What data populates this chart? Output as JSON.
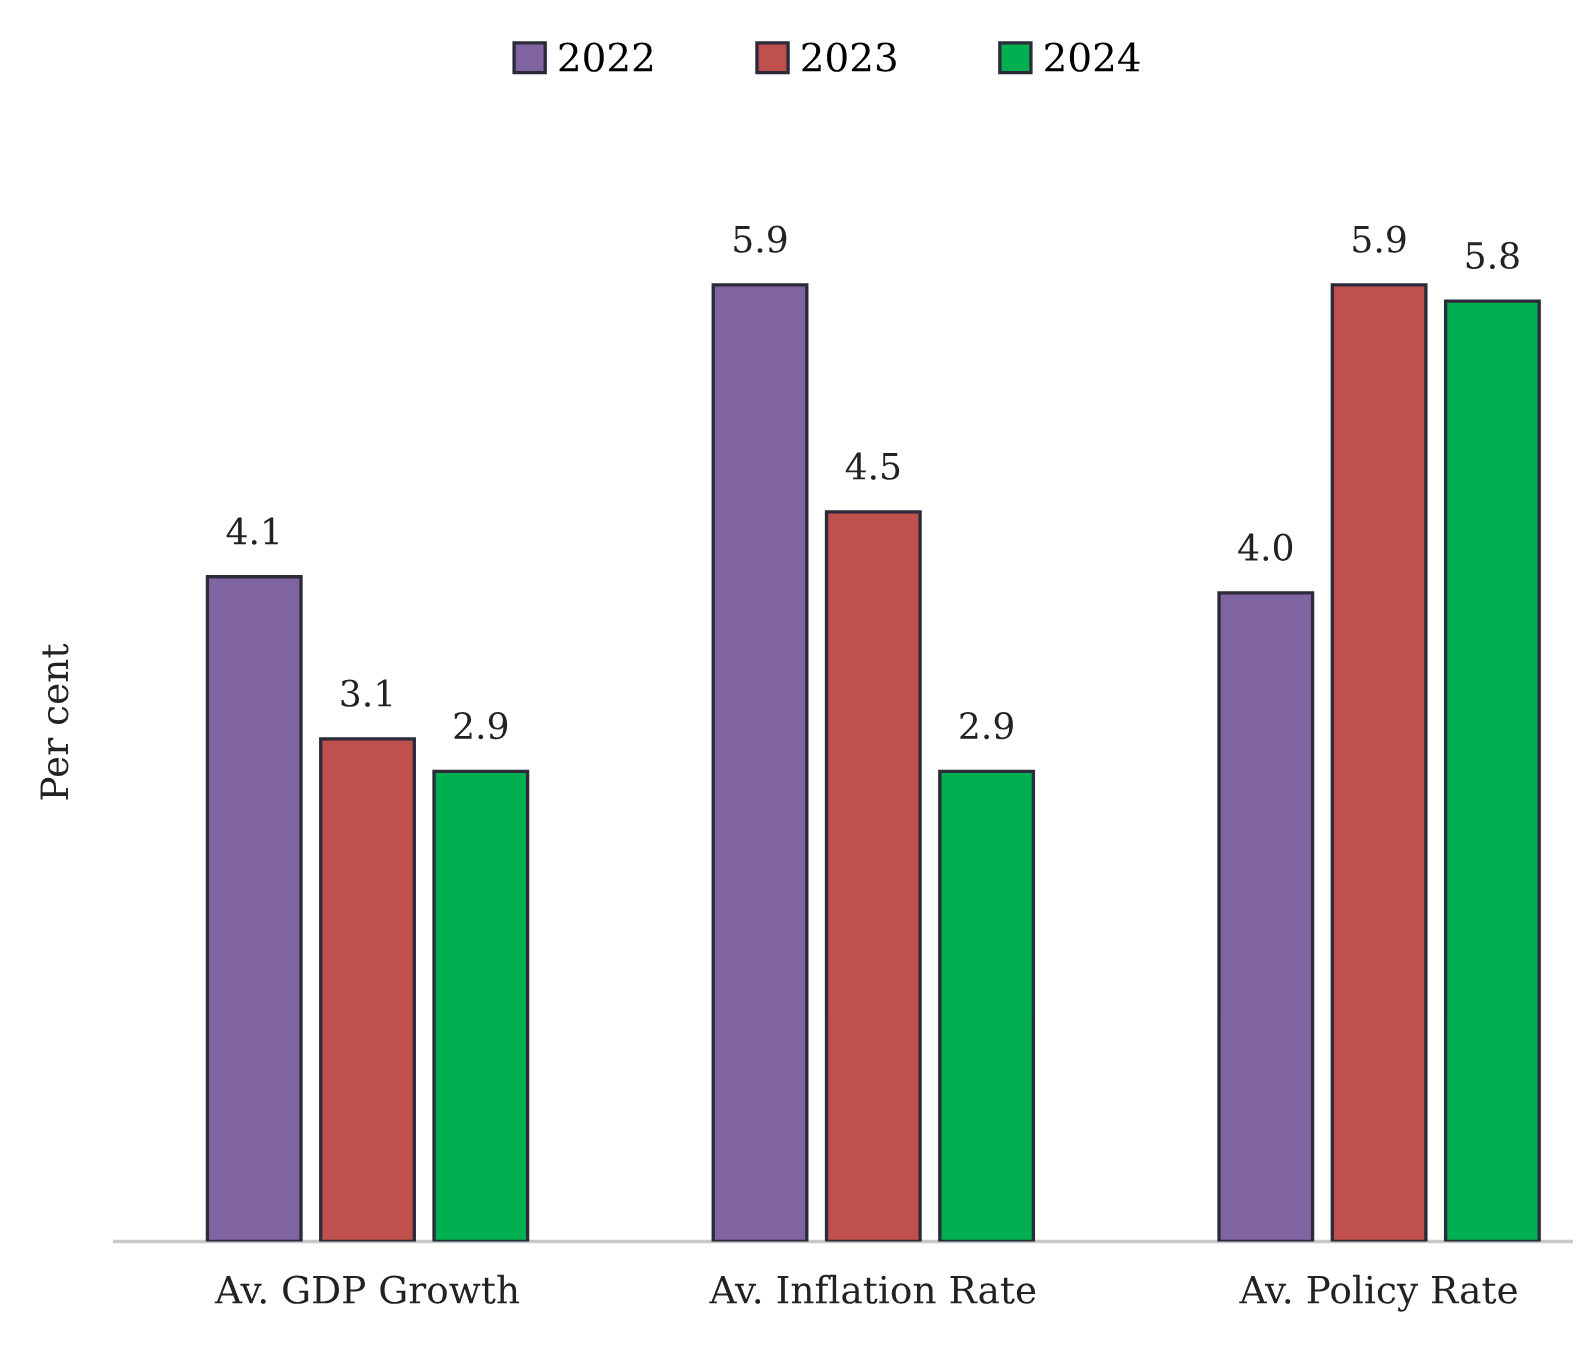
{
  "chart_data": {
    "type": "bar",
    "categories": [
      "Av. GDP Growth",
      "Av. Inflation Rate",
      "Av. Policy Rate"
    ],
    "ylabel": "Per cent",
    "series": [
      {
        "name": "2022",
        "color": "#8064a2",
        "values": [
          4.1,
          5.9,
          4.0
        ],
        "value_labels": [
          "4.1",
          "5.9",
          "4.0"
        ]
      },
      {
        "name": "2023",
        "color": "#c0504d",
        "values": [
          3.1,
          4.5,
          5.9
        ],
        "value_labels": [
          "3.1",
          "4.5",
          "5.9"
        ]
      },
      {
        "name": "2024",
        "color": "#00b050",
        "values": [
          2.9,
          2.9,
          5.8
        ],
        "value_labels": [
          "2.9",
          "2.9",
          "5.8"
        ]
      }
    ],
    "legend": "top"
  }
}
